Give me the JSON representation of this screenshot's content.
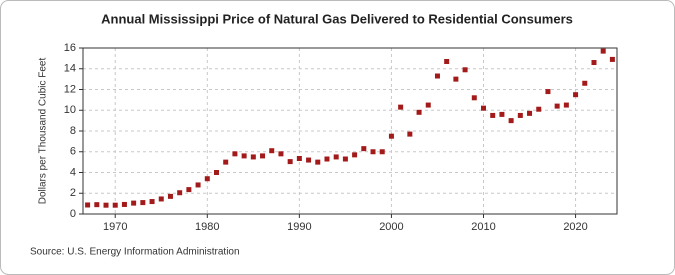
{
  "chart_data": {
    "type": "scatter",
    "title": "Annual Mississippi Price of Natural Gas Delivered to Residential Consumers",
    "y_label": "Dollars per Thousand Cubic Feet",
    "source": "Source: U.S. Energy Information Administration",
    "color": "#a31a1a",
    "grid": true,
    "xlim": [
      1966.5,
      2024.5
    ],
    "xticks": [
      1970,
      1980,
      1990,
      2000,
      2010,
      2020
    ],
    "ylim": [
      0,
      16
    ],
    "yticks": [
      0,
      2,
      4,
      6,
      8,
      10,
      12,
      14,
      16
    ],
    "x": [
      1967,
      1968,
      1969,
      1970,
      1971,
      1972,
      1973,
      1974,
      1975,
      1976,
      1977,
      1978,
      1979,
      1980,
      1981,
      1982,
      1983,
      1984,
      1985,
      1986,
      1987,
      1988,
      1989,
      1990,
      1991,
      1992,
      1993,
      1994,
      1995,
      1996,
      1997,
      1998,
      1999,
      2000,
      2001,
      2002,
      2003,
      2004,
      2005,
      2006,
      2007,
      2008,
      2009,
      2010,
      2011,
      2012,
      2013,
      2014,
      2015,
      2016,
      2017,
      2018,
      2019,
      2020,
      2021,
      2022,
      2023,
      2024
    ],
    "values": [
      0.87,
      0.9,
      0.85,
      0.85,
      0.92,
      1.05,
      1.1,
      1.2,
      1.45,
      1.7,
      2.05,
      2.35,
      2.8,
      3.4,
      4.0,
      5.0,
      5.8,
      5.6,
      5.5,
      5.6,
      6.1,
      5.8,
      5.05,
      5.35,
      5.2,
      5.0,
      5.3,
      5.5,
      5.3,
      5.7,
      6.3,
      6.0,
      6.0,
      7.5,
      10.3,
      7.7,
      9.8,
      10.5,
      13.3,
      14.7,
      13.0,
      13.9,
      11.2,
      10.2,
      9.5,
      9.6,
      9.0,
      9.5,
      9.7,
      10.1,
      11.8,
      10.4,
      10.5,
      11.5,
      12.6,
      14.6,
      15.7,
      14.9
    ]
  }
}
